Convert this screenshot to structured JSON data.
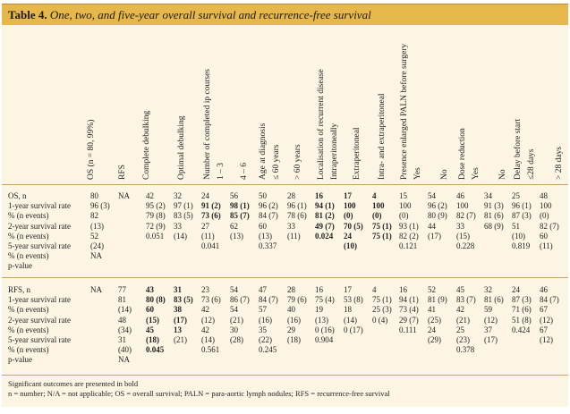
{
  "table": {
    "label": "Table 4.",
    "title": "One, two, and five-year overall survival and recurrence-free survival",
    "headers": [
      {
        "text": "OS (n = 80, 99%)"
      },
      {
        "text": "RFS"
      },
      {
        "text": "Complete debulking"
      },
      {
        "text": "Optimal debulking"
      },
      {
        "text": "Number of completed ip courses"
      },
      {
        "text": "1 – 3"
      },
      {
        "text": "4 – 6"
      },
      {
        "text": "Age at diagnosis"
      },
      {
        "text": "≤ 60 years"
      },
      {
        "text": "> 60 years"
      },
      {
        "text": "Localisation of recurrent disease"
      },
      {
        "text": "Intraperitoneally"
      },
      {
        "text": "Extraperitoneal"
      },
      {
        "text": "Intra- and extraperitoneal"
      },
      {
        "text": "Presence enlarged PALN before surgery"
      },
      {
        "text": "Yes"
      },
      {
        "text": "No"
      },
      {
        "text": "Dose reduction"
      },
      {
        "text": "Yes"
      },
      {
        "text": "No"
      },
      {
        "text": "Delay before start"
      },
      {
        "text": "≤28 days"
      },
      {
        "text": "> 28 days"
      }
    ],
    "os_labels": "OS, n\n1-year survival rate\n% (n events)\n2-year survival rate\n% (n events)\n5-year survival rate\n% (n events)\np-value",
    "rfs_labels": "RFS, n\n1-year survival rate\n% (n events)\n2-year survival rate\n% (n events)\n5-year survival rate\n% (n events)\np-value",
    "os_cols": [
      "80\n96 (3)\n82\n(13)\n52\n(24)\nNA",
      "NA",
      "42\n95 (2)\n79 (8)\n72 (9)\n0.051",
      "32\n97 (1)\n83 (5)\n33\n(14)",
      "24\n91 (2)\n73 (6)\n27\n(11)\n0.041",
      "56\n98 (1)\n85 (7)\n62\n(13)",
      "50\n96 (2)\n84 (7)\n60\n(13)\n0.337",
      "28\n96 (1)\n78 (6)\n33\n(11)",
      "16\n94 (1)\n81 (2)\n49 (7)\n0.024",
      "17\n100\n(0)\n70 (5)\n24\n(10)",
      "4\n100\n(0)\n75 (1)\n75 (1)",
      "15\n100\n(0)\n93 (1)\n82 (2)\n0.121",
      "54\n96 (2)\n80 (9)\n44\n(17)",
      "46\n100\n82 (7)\n33\n(15)\n0.228",
      "34\n91 (3)\n81 (6)\n68 (9)",
      "25\n96 (1)\n87 (3)\n51\n(10)\n0.819",
      "48\n100\n(0)\n82 (7)\n60\n(11)"
    ],
    "rfs_cols": [
      "NA",
      "77\n81\n(14)\n48\n(34)\n31\n(40)\nNA",
      "43\n80 (8)\n60\n(15)\n45\n(18)\n0.045",
      "31\n83 (5)\n38\n(17)\n13\n(21)",
      "23\n73 (6)\n42\n(12)\n42\n(14)\n0.561",
      "54\n86 (7)\n54\n(21)\n30\n(28)",
      "47\n84 (7)\n57\n(16)\n35\n(22)\n0.245",
      "28\n79 (6)\n40\n(16)\n29\n(18)",
      "16\n75 (4)\n19\n(13)\n0 (16)\n0.904",
      "17\n53 (8)\n18\n(14)\n0 (17)",
      "4\n75 (1)\n25 (3)\n0 (4)",
      "16\n94 (1)\n73 (4)\n29 (7)\n0.111",
      "52\n81 (9)\n41\n(25)\n24\n(29)",
      "45\n83 (7)\n42\n(21)\n25\n(23)\n0.378",
      "32\n81 (6)\n59\n(12)\n37\n(17)",
      "24\n87 (3)\n71 (6)\n51 (8)\n0.424",
      "46\n84 (7)\n67\n(12)\n67\n(12)"
    ],
    "footnotes": [
      "Significant outcomes are presented in bold",
      "n = number; N/A = not applicable; OS = overall survival; PALN = para-aortic lymph nodules; RFS = recurrence-free survival"
    ]
  }
}
